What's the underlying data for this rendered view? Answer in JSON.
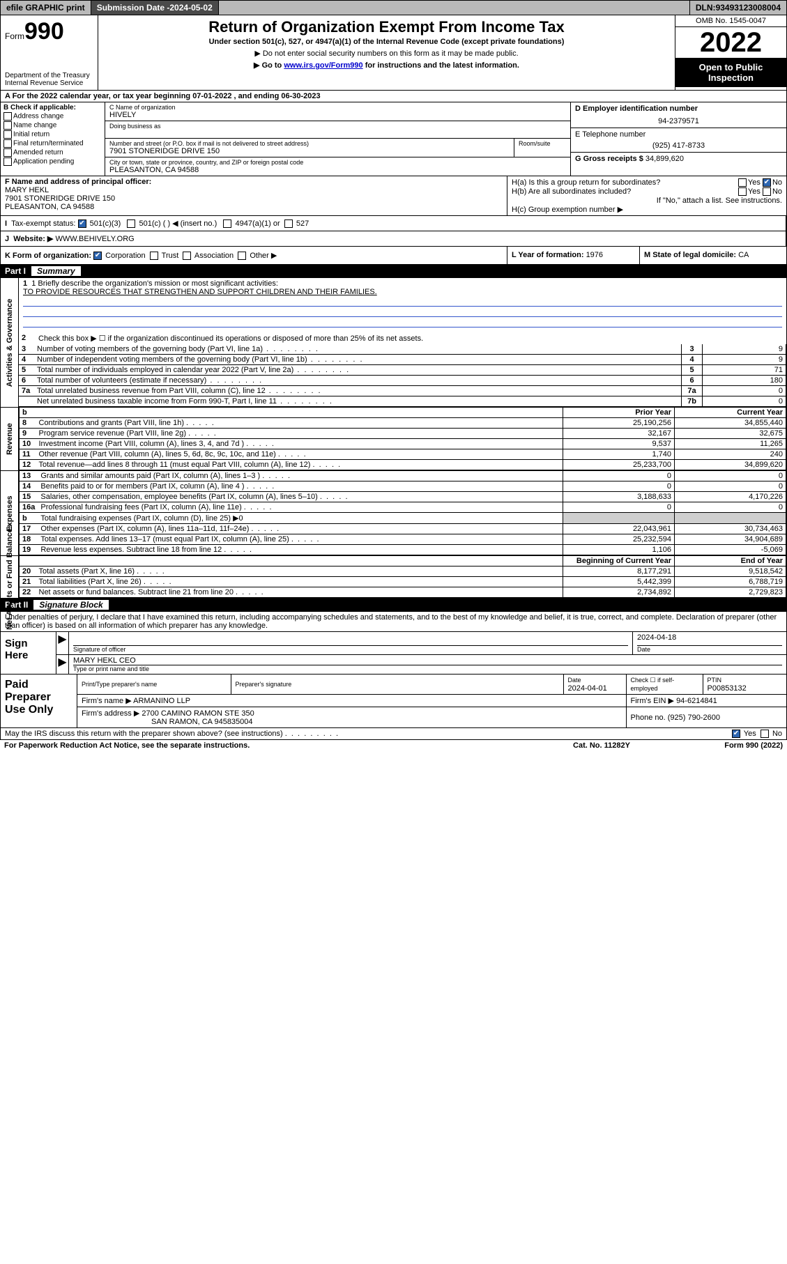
{
  "topbar": {
    "efile": "efile GRAPHIC print",
    "subdate_label": "Submission Date - ",
    "subdate": "2024-05-02",
    "dln_label": "DLN: ",
    "dln": "93493123008004"
  },
  "header": {
    "form_word": "Form",
    "form_num": "990",
    "dept": "Department of the Treasury",
    "irs": "Internal Revenue Service",
    "title": "Return of Organization Exempt From Income Tax",
    "subtitle": "Under section 501(c), 527, or 4947(a)(1) of the Internal Revenue Code (except private foundations)",
    "note1": "▶ Do not enter social security numbers on this form as it may be made public.",
    "note2_pre": "▶ Go to ",
    "note2_link": "www.irs.gov/Form990",
    "note2_post": " for instructions and the latest information.",
    "omb": "OMB No. 1545-0047",
    "year": "2022",
    "open": "Open to Public Inspection"
  },
  "lineA": "A For the 2022 calendar year, or tax year beginning 07-01-2022   , and ending 06-30-2023",
  "B": {
    "label": "B Check if applicable:",
    "items": [
      "Address change",
      "Name change",
      "Initial return",
      "Final return/terminated",
      "Amended return",
      "Application pending"
    ]
  },
  "C": {
    "name_label": "C Name of organization",
    "name": "HIVELY",
    "dba_label": "Doing business as",
    "addr_label": "Number and street (or P.O. box if mail is not delivered to street address)",
    "room_label": "Room/suite",
    "addr": "7901 STONERIDGE DRIVE 150",
    "city_label": "City or town, state or province, country, and ZIP or foreign postal code",
    "city": "PLEASANTON, CA  94588"
  },
  "D": {
    "label": "D Employer identification number",
    "value": "94-2379571"
  },
  "E": {
    "label": "E Telephone number",
    "value": "(925) 417-8733"
  },
  "G": {
    "label": "G Gross receipts $ ",
    "value": "34,899,620"
  },
  "F": {
    "label": "F  Name and address of principal officer:",
    "name": "MARY HEKL",
    "addr1": "7901 STONERIDGE DRIVE 150",
    "addr2": "PLEASANTON, CA  94588"
  },
  "H": {
    "a": "H(a)  Is this a group return for subordinates?",
    "a_yes": "Yes",
    "a_no": "No",
    "b": "H(b)  Are all subordinates included?",
    "b_yes": "Yes",
    "b_no": "No",
    "b_note": "If \"No,\" attach a list. See instructions.",
    "c": "H(c)  Group exemption number ▶"
  },
  "I": {
    "label": "Tax-exempt status:",
    "o1": "501(c)(3)",
    "o2": "501(c) (  ) ◀ (insert no.)",
    "o3": "4947(a)(1) or",
    "o4": "527"
  },
  "J": {
    "label": "Website: ▶ ",
    "value": "WWW.BEHIVELY.ORG"
  },
  "K": {
    "label": "K Form of organization:",
    "o1": "Corporation",
    "o2": "Trust",
    "o3": "Association",
    "o4": "Other ▶"
  },
  "L": {
    "label": "L Year of formation: ",
    "value": "1976"
  },
  "M": {
    "label": "M State of legal domicile: ",
    "value": "CA"
  },
  "part1": {
    "label": "Part I",
    "title": "Summary"
  },
  "mission": {
    "prompt": "1  Briefly describe the organization's mission or most significant activities:",
    "text": "TO PROVIDE RESOURCES THAT STRENGTHEN AND SUPPORT CHILDREN AND THEIR FAMILIES."
  },
  "line2": "Check this box ▶ ☐  if the organization discontinued its operations or disposed of more than 25% of its net assets.",
  "gov_lines": [
    {
      "n": "3",
      "d": "Number of voting members of the governing body (Part VI, line 1a)",
      "k": "3",
      "v": "9"
    },
    {
      "n": "4",
      "d": "Number of independent voting members of the governing body (Part VI, line 1b)",
      "k": "4",
      "v": "9"
    },
    {
      "n": "5",
      "d": "Total number of individuals employed in calendar year 2022 (Part V, line 2a)",
      "k": "5",
      "v": "71"
    },
    {
      "n": "6",
      "d": "Total number of volunteers (estimate if necessary)",
      "k": "6",
      "v": "180"
    },
    {
      "n": "7a",
      "d": "Total unrelated business revenue from Part VIII, column (C), line 12",
      "k": "7a",
      "v": "0"
    },
    {
      "n": "",
      "d": "Net unrelated business taxable income from Form 990-T, Part I, line 11",
      "k": "7b",
      "v": "0"
    }
  ],
  "cols": {
    "b": "b",
    "prior": "Prior Year",
    "current": "Current Year"
  },
  "revenue": [
    {
      "n": "8",
      "d": "Contributions and grants (Part VIII, line 1h)",
      "p": "25,190,256",
      "c": "34,855,440"
    },
    {
      "n": "9",
      "d": "Program service revenue (Part VIII, line 2g)",
      "p": "32,167",
      "c": "32,675"
    },
    {
      "n": "10",
      "d": "Investment income (Part VIII, column (A), lines 3, 4, and 7d )",
      "p": "9,537",
      "c": "11,265"
    },
    {
      "n": "11",
      "d": "Other revenue (Part VIII, column (A), lines 5, 6d, 8c, 9c, 10c, and 11e)",
      "p": "1,740",
      "c": "240"
    },
    {
      "n": "12",
      "d": "Total revenue—add lines 8 through 11 (must equal Part VIII, column (A), line 12)",
      "p": "25,233,700",
      "c": "34,899,620"
    }
  ],
  "expenses": [
    {
      "n": "13",
      "d": "Grants and similar amounts paid (Part IX, column (A), lines 1–3 )",
      "p": "0",
      "c": "0"
    },
    {
      "n": "14",
      "d": "Benefits paid to or for members (Part IX, column (A), line 4 )",
      "p": "0",
      "c": "0"
    },
    {
      "n": "15",
      "d": "Salaries, other compensation, employee benefits (Part IX, column (A), lines 5–10)",
      "p": "3,188,633",
      "c": "4,170,226"
    },
    {
      "n": "16a",
      "d": "Professional fundraising fees (Part IX, column (A), line 11e)",
      "p": "0",
      "c": "0"
    },
    {
      "n": "b",
      "d": "Total fundraising expenses (Part IX, column (D), line 25) ▶0",
      "p": "",
      "c": "",
      "shade": true
    },
    {
      "n": "17",
      "d": "Other expenses (Part IX, column (A), lines 11a–11d, 11f–24e)",
      "p": "22,043,961",
      "c": "30,734,463"
    },
    {
      "n": "18",
      "d": "Total expenses. Add lines 13–17 (must equal Part IX, column (A), line 25)",
      "p": "25,232,594",
      "c": "34,904,689"
    },
    {
      "n": "19",
      "d": "Revenue less expenses. Subtract line 18 from line 12",
      "p": "1,106",
      "c": "-5,069"
    }
  ],
  "net_cols": {
    "b": "Beginning of Current Year",
    "e": "End of Year"
  },
  "net": [
    {
      "n": "20",
      "d": "Total assets (Part X, line 16)",
      "p": "8,177,291",
      "c": "9,518,542"
    },
    {
      "n": "21",
      "d": "Total liabilities (Part X, line 26)",
      "p": "5,442,399",
      "c": "6,788,719"
    },
    {
      "n": "22",
      "d": "Net assets or fund balances. Subtract line 21 from line 20",
      "p": "2,734,892",
      "c": "2,729,823"
    }
  ],
  "vlabels": {
    "gov": "Activities & Governance",
    "rev": "Revenue",
    "exp": "Expenses",
    "net": "Net Assets or Fund Balances"
  },
  "part2": {
    "label": "Part II",
    "title": "Signature Block"
  },
  "decl": "Under penalties of perjury, I declare that I have examined this return, including accompanying schedules and statements, and to the best of my knowledge and belief, it is true, correct, and complete. Declaration of preparer (other than officer) is based on all information of which preparer has any knowledge.",
  "sign": {
    "here": "Sign Here",
    "sigline": "Signature of officer",
    "date": "2024-04-18",
    "date_lbl": "Date",
    "name": "MARY HEKL CEO",
    "name_lbl": "Type or print name and title"
  },
  "paid": {
    "label": "Paid Preparer Use Only",
    "h1": "Print/Type preparer's name",
    "h2": "Preparer's signature",
    "h3": "Date",
    "h4": "Check ☐ if self-employed",
    "h5": "PTIN",
    "date": "2024-04-01",
    "ptin": "P00853132",
    "firm_lbl": "Firm's name   ▶ ",
    "firm": "ARMANINO LLP",
    "ein_lbl": "Firm's EIN ▶ ",
    "ein": "94-6214841",
    "addr_lbl": "Firm's address ▶ ",
    "addr1": "2700 CAMINO RAMON STE 350",
    "addr2": "SAN RAMON, CA  945835004",
    "phone_lbl": "Phone no. ",
    "phone": "(925) 790-2600"
  },
  "discuss": {
    "q": "May the IRS discuss this return with the preparer shown above? (see instructions)",
    "yes": "Yes",
    "no": "No"
  },
  "paperwork": {
    "l": "For Paperwork Reduction Act Notice, see the separate instructions.",
    "m": "Cat. No. 11282Y",
    "r": "Form 990 (2022)"
  }
}
